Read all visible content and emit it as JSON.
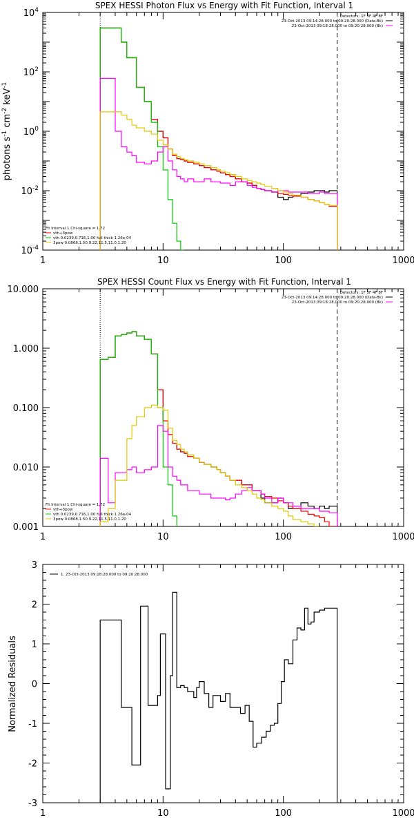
{
  "colors": {
    "data": "#000000",
    "total_fit": "#ff0000",
    "vth": "#00cc00",
    "bkg": "#ff00ff",
    "3pow": "#e0c800"
  },
  "chart_data": [
    {
      "type": "line",
      "title": "SPEX HESSI Photon Flux vs Energy with Fit Function, Interval 1",
      "ylabel_parts": [
        "photons s",
        "-1",
        " cm",
        "-2",
        " keV",
        "-1"
      ],
      "xlim": [
        1,
        1000
      ],
      "ylim": [
        0.0001,
        10000
      ],
      "xscale": "log",
      "yscale": "log",
      "x_ticks": [
        "1",
        "10",
        "100",
        "1000"
      ],
      "y_ticks": [
        {
          "base": "10",
          "exp": "-4"
        },
        {
          "base": "10",
          "exp": "-2"
        },
        {
          "base": "10",
          "exp": "0"
        },
        {
          "base": "10",
          "exp": "2"
        },
        {
          "base": "10",
          "exp": "4"
        }
      ],
      "vlines": [
        {
          "x": 3,
          "style": "dotted"
        },
        {
          "x": 280,
          "style": "dashed"
        }
      ],
      "info_top_right": [
        "Detectors: 1F 3F 4F 8F",
        "23-Oct-2013 09:14:28.000 to 09:20:28.000 (Data-Bk)",
        "23-Oct-2013 09:18:28.000 to 09:20:28.000 (Bk)"
      ],
      "legend_bottom_left": [
        "Fit Interval 1    Chi-square = 1.72",
        "vth+3pow",
        "vth 0.0239,0.716,1.00  full thick 1.26e-04",
        "3pow 0.0868,1.50,9.22,11.5,11.0,1.20"
      ],
      "series": [
        {
          "key": "data",
          "x": [
            3,
            3.5,
            4,
            4.5,
            5,
            5.5,
            6,
            7,
            8,
            9,
            10,
            11,
            12,
            13,
            14,
            15,
            16,
            18,
            20,
            22,
            25,
            28,
            30,
            33,
            36,
            40,
            45,
            50,
            55,
            60,
            65,
            70,
            80,
            90,
            100,
            110,
            120,
            140,
            160,
            180,
            200,
            220,
            240,
            280
          ],
          "y": [
            3000,
            3000,
            3000,
            1000,
            300,
            300,
            30,
            10,
            2.5,
            1,
            0.6,
            0.25,
            0.15,
            0.12,
            0.11,
            0.1,
            0.09,
            0.08,
            0.07,
            0.06,
            0.05,
            0.045,
            0.04,
            0.035,
            0.03,
            0.025,
            0.02,
            0.018,
            0.015,
            0.012,
            0.011,
            0.01,
            0.009,
            0.006,
            0.005,
            0.006,
            0.007,
            0.008,
            0.009,
            0.01,
            0.01,
            0.009,
            0.01,
            0.01
          ]
        },
        {
          "key": "total_fit",
          "x": [
            3,
            3.5,
            4,
            4.5,
            5,
            5.5,
            6,
            7,
            8,
            9,
            10,
            11,
            12,
            13,
            14,
            15,
            16,
            18,
            20,
            22,
            25,
            28,
            30,
            33,
            36,
            40,
            45,
            50,
            55,
            60,
            65,
            70,
            80,
            90,
            100,
            110,
            120,
            140,
            160,
            180,
            200,
            220,
            240,
            280
          ],
          "y": [
            3000,
            3000,
            3000,
            1000,
            300,
            300,
            30,
            10,
            2.5,
            1,
            0.6,
            0.25,
            0.15,
            0.12,
            0.11,
            0.1,
            0.09,
            0.08,
            0.07,
            0.06,
            0.05,
            0.045,
            0.04,
            0.035,
            0.03,
            0.025,
            0.02,
            0.018,
            0.015,
            0.012,
            0.011,
            0.01,
            0.009,
            0.008,
            0.0075,
            0.007,
            0.0065,
            0.006,
            0.005,
            0.0045,
            0.004,
            0.0035,
            0.003,
            0.003
          ]
        },
        {
          "key": "vth",
          "x": [
            3,
            3.5,
            4,
            4.5,
            5,
            5.5,
            6,
            7,
            8,
            9,
            10,
            11,
            12,
            13,
            14,
            15
          ],
          "y": [
            3000,
            3000,
            3000,
            1000,
            300,
            300,
            30,
            10,
            2,
            0.3,
            0.05,
            0.005,
            0.0008,
            0.0002,
            0.0001,
            0.0001
          ]
        },
        {
          "key": "bkg",
          "x": [
            3,
            3.5,
            4,
            4.5,
            5,
            5.5,
            6,
            7,
            8,
            9,
            10,
            11,
            12,
            13,
            14,
            15,
            16,
            18,
            20,
            22,
            25,
            28,
            30,
            33,
            36,
            40,
            45,
            50,
            55,
            60,
            65,
            70,
            80,
            90,
            100,
            110,
            120,
            140,
            160,
            180,
            200,
            220,
            240,
            280
          ],
          "y": [
            60,
            60,
            1,
            0.3,
            0.2,
            0.15,
            0.09,
            0.08,
            0.1,
            0.2,
            0.3,
            0.1,
            0.05,
            0.03,
            0.025,
            0.02,
            0.025,
            0.02,
            0.02,
            0.025,
            0.02,
            0.02,
            0.018,
            0.018,
            0.015,
            0.02,
            0.02,
            0.015,
            0.013,
            0.012,
            0.011,
            0.01,
            0.009,
            0.01,
            0.01,
            0.009,
            0.009,
            0.009,
            0.008,
            0.008,
            0.009,
            0.008,
            0.008,
            0.007
          ]
        },
        {
          "key": "3pow",
          "x": [
            3,
            3.5,
            4,
            4.5,
            5,
            5.5,
            6,
            7,
            8,
            9,
            10,
            11,
            12,
            13,
            14,
            15,
            16,
            18,
            20,
            22,
            25,
            28,
            30,
            33,
            36,
            40,
            45,
            50,
            55,
            60,
            65,
            70,
            80,
            90,
            100,
            110,
            120,
            140,
            160,
            180,
            200,
            220,
            240,
            280
          ],
          "y": [
            4.5,
            4.5,
            4.5,
            3.5,
            2.5,
            1.6,
            1.3,
            1,
            0.8,
            0.5,
            0.35,
            0.25,
            0.17,
            0.14,
            0.12,
            0.11,
            0.1,
            0.09,
            0.08,
            0.07,
            0.06,
            0.05,
            0.045,
            0.04,
            0.035,
            0.03,
            0.025,
            0.022,
            0.02,
            0.018,
            0.016,
            0.014,
            0.012,
            0.01,
            0.009,
            0.008,
            0.007,
            0.006,
            0.005,
            0.0045,
            0.004,
            0.0035,
            0.0032,
            0.0028
          ]
        }
      ]
    },
    {
      "type": "line",
      "title": "SPEX HESSI Count Flux vs Energy with Fit Function, Interval 1",
      "xlim": [
        1,
        1000
      ],
      "ylim": [
        0.001,
        10
      ],
      "xscale": "log",
      "yscale": "log",
      "x_ticks": [
        "1",
        "10",
        "100",
        "1000"
      ],
      "y_ticks": [
        "0.001",
        "0.010",
        "0.100",
        "1.000",
        "10.000"
      ],
      "vlines": [
        {
          "x": 3,
          "style": "dotted"
        },
        {
          "x": 280,
          "style": "dashed"
        }
      ],
      "info_top_right": [
        "Detectors: 1F 3F 4F 8F",
        "23-Oct-2013 09:14:28.000 to 09:20:28.000 (Data-Bk)",
        "23-Oct-2013 09:18:28.000 to 09:20:28.000 (Bk)"
      ],
      "legend_bottom_left": [
        "Fit Interval 1    Chi-square = 1.72",
        "vth+3pow",
        "vth 0.0239,0.716,1.00  full thick 1.26e-04",
        "3pow 0.0868,1.50,9.22,11.5,11.0,1.20"
      ],
      "series": [
        {
          "key": "data",
          "x": [
            3,
            3.5,
            4,
            4.5,
            5,
            5.5,
            6,
            7,
            8,
            9,
            10,
            11,
            12,
            13,
            14,
            15,
            16,
            18,
            20,
            22,
            25,
            28,
            30,
            33,
            36,
            40,
            45,
            50,
            55,
            60,
            65,
            70,
            80,
            90,
            100,
            110,
            120,
            140,
            160,
            180,
            200,
            220,
            240,
            280
          ],
          "y": [
            0.65,
            0.7,
            1.6,
            1.7,
            1.8,
            1.9,
            1.6,
            1.4,
            0.8,
            0.2,
            0.06,
            0.035,
            0.025,
            0.02,
            0.018,
            0.017,
            0.015,
            0.014,
            0.012,
            0.011,
            0.01,
            0.009,
            0.008,
            0.007,
            0.006,
            0.006,
            0.005,
            0.005,
            0.004,
            0.004,
            0.003,
            0.0025,
            0.0025,
            0.003,
            0.0025,
            0.002,
            0.002,
            0.0025,
            0.0022,
            0.002,
            0.0022,
            0.002,
            0.0022,
            0.0015
          ]
        },
        {
          "key": "total_fit",
          "x": [
            3,
            3.5,
            4,
            4.5,
            5,
            5.5,
            6,
            7,
            8,
            9,
            10,
            11,
            12,
            13,
            14,
            15,
            16,
            18,
            20,
            22,
            25,
            28,
            30,
            33,
            36,
            40,
            45,
            50,
            55,
            60,
            65,
            70,
            80,
            90,
            100,
            110,
            120,
            140,
            160,
            180,
            200,
            220,
            240,
            280
          ],
          "y": [
            0.65,
            0.7,
            1.6,
            1.7,
            1.8,
            1.9,
            1.6,
            1.4,
            0.8,
            0.2,
            0.06,
            0.035,
            0.025,
            0.02,
            0.018,
            0.017,
            0.015,
            0.014,
            0.012,
            0.011,
            0.01,
            0.009,
            0.008,
            0.007,
            0.006,
            0.006,
            0.005,
            0.005,
            0.004,
            0.004,
            0.0035,
            0.0032,
            0.003,
            0.0027,
            0.0025,
            0.0022,
            0.002,
            0.0018,
            0.0016,
            0.0015,
            0.0014,
            0.0012,
            0.001,
            0.001
          ]
        },
        {
          "key": "vth",
          "x": [
            3,
            3.5,
            4,
            4.5,
            5,
            5.5,
            6,
            7,
            8,
            9,
            10,
            11,
            12,
            13
          ],
          "y": [
            0.65,
            0.7,
            1.6,
            1.7,
            1.8,
            1.9,
            1.6,
            1.4,
            0.8,
            0.1,
            0.01,
            0.005,
            0.0015,
            0.001
          ]
        },
        {
          "key": "bkg",
          "x": [
            3,
            3.5,
            4,
            4.5,
            5,
            5.5,
            6,
            7,
            8,
            9,
            10,
            11,
            12,
            13,
            14,
            15,
            16,
            18,
            20,
            22,
            25,
            28,
            30,
            33,
            36,
            40,
            45,
            50,
            55,
            60,
            65,
            70,
            80,
            90,
            100,
            110,
            120,
            140,
            160,
            180,
            200,
            220,
            240,
            280
          ],
          "y": [
            0.014,
            0.0025,
            0.008,
            0.008,
            0.009,
            0.01,
            0.008,
            0.009,
            0.01,
            0.05,
            0.04,
            0.01,
            0.007,
            0.006,
            0.005,
            0.005,
            0.004,
            0.004,
            0.0035,
            0.0035,
            0.003,
            0.003,
            0.003,
            0.0028,
            0.003,
            0.0035,
            0.004,
            0.0045,
            0.004,
            0.004,
            0.0035,
            0.003,
            0.0025,
            0.003,
            0.0025,
            0.0025,
            0.0022,
            0.002,
            0.002,
            0.002,
            0.0018,
            0.0018,
            0.0017,
            0.0015
          ]
        },
        {
          "key": "3pow",
          "x": [
            3,
            3.5,
            4,
            4.5,
            5,
            5.5,
            6,
            7,
            8,
            9,
            10,
            11,
            12,
            13,
            14,
            15,
            16,
            18,
            20,
            22,
            25,
            28,
            30,
            33,
            36,
            40,
            45,
            50,
            55,
            60,
            65,
            70,
            80,
            90,
            100,
            110,
            120,
            140,
            160,
            180,
            200
          ],
          "y": [
            0.0012,
            0.002,
            0.006,
            0.006,
            0.03,
            0.05,
            0.07,
            0.1,
            0.11,
            0.1,
            0.09,
            0.045,
            0.028,
            0.024,
            0.02,
            0.018,
            0.016,
            0.014,
            0.012,
            0.011,
            0.01,
            0.009,
            0.008,
            0.007,
            0.006,
            0.005,
            0.0045,
            0.004,
            0.0035,
            0.003,
            0.0028,
            0.0025,
            0.0022,
            0.002,
            0.0018,
            0.0015,
            0.0013,
            0.0012,
            0.0011,
            0.001,
            0.001
          ]
        }
      ]
    },
    {
      "type": "line",
      "ylabel": "Normalized Residuals",
      "xlim": [
        1,
        1000
      ],
      "ylim": [
        -3,
        3
      ],
      "xscale": "log",
      "x_ticks": [
        "1",
        "10",
        "100",
        "1000"
      ],
      "y_ticks": [
        "-3",
        "-2",
        "-1",
        "0",
        "1",
        "2",
        "3"
      ],
      "legend_top_left": "1. 23-Oct-2013 09:18:28.000 to 09:20:28.000",
      "series": [
        {
          "key": "data",
          "x": [
            3,
            4,
            4.5,
            5,
            5.5,
            6,
            6.5,
            7,
            7.5,
            8,
            9,
            9.5,
            10,
            10.5,
            11,
            11.5,
            12,
            12.5,
            13,
            14,
            15,
            16,
            17,
            18,
            19,
            20,
            22,
            24,
            26,
            28,
            30,
            33,
            36,
            40,
            44,
            48,
            52,
            56,
            60,
            66,
            72,
            78,
            84,
            90,
            96,
            102,
            110,
            120,
            130,
            140,
            150,
            160,
            170,
            180,
            200,
            220,
            240,
            260,
            280
          ],
          "y": [
            1.6,
            1.6,
            -0.6,
            -0.6,
            -2.05,
            -2.05,
            1.95,
            1.95,
            -0.55,
            -0.55,
            -0.3,
            1.25,
            1.25,
            -2.65,
            -2.65,
            0.2,
            2.3,
            2.3,
            -0.1,
            -0.05,
            -0.1,
            -0.2,
            -0.2,
            -0.35,
            -0.1,
            0.05,
            -0.25,
            -0.6,
            -0.3,
            -0.3,
            -0.45,
            -0.25,
            -0.6,
            -0.6,
            -0.75,
            -0.55,
            -0.95,
            -1.6,
            -1.5,
            -1.35,
            -1.2,
            -1.05,
            -1.0,
            -0.5,
            0.05,
            0.6,
            0.5,
            1.1,
            1.4,
            1.35,
            1.9,
            1.5,
            1.55,
            1.8,
            1.85,
            1.9,
            1.9,
            1.9,
            1.9
          ]
        }
      ]
    }
  ]
}
